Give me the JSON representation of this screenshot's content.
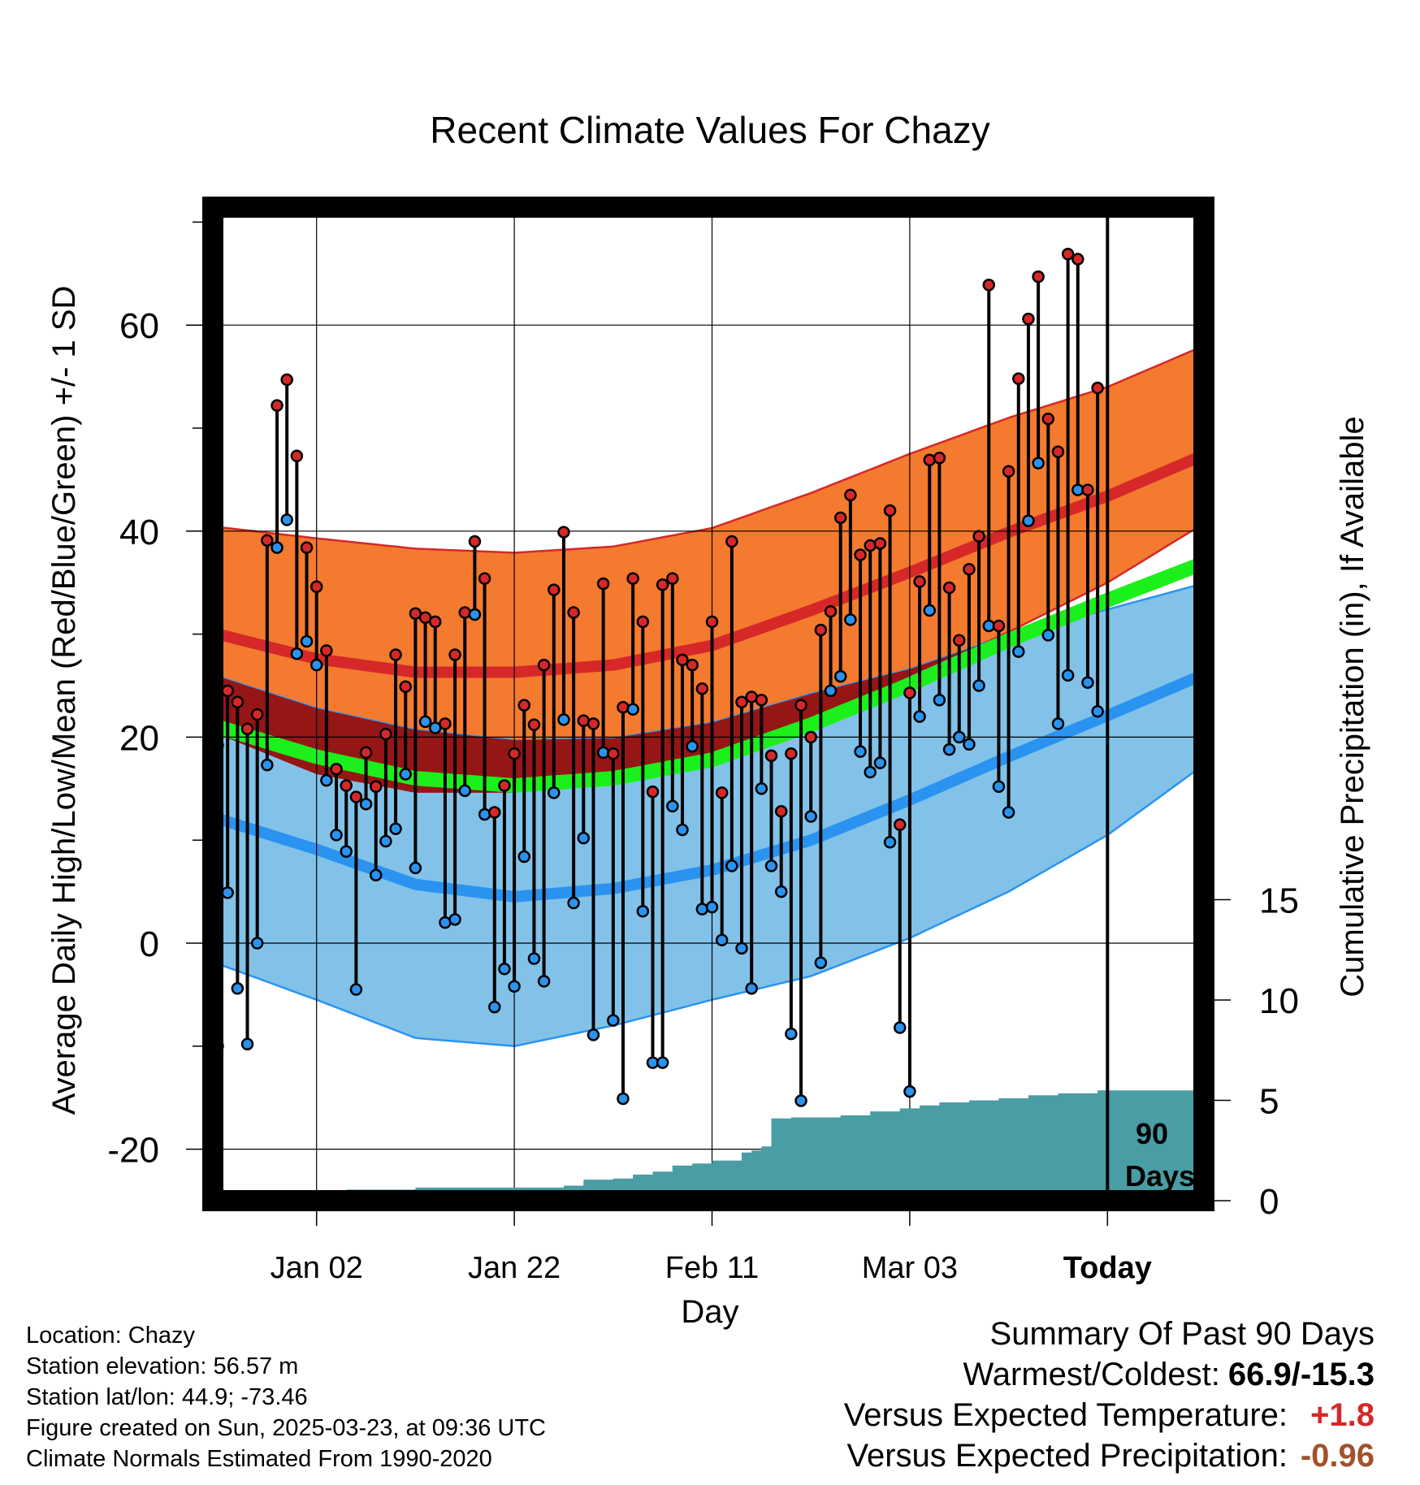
{
  "chart_data": {
    "type": "line",
    "title": "Recent Climate Values For Chazy",
    "xlabel": "Day",
    "ylabel": "Average Daily High/Low/Mean (Red/Blue/Green) +/- 1 SD",
    "y2label": "Cumulative Precipitation (in), If Available",
    "xticks": [
      "Jan 02",
      "Jan 22",
      "Feb 11",
      "Mar 03",
      "Today"
    ],
    "xtick_days": [
      10,
      30,
      50,
      70,
      90
    ],
    "x_range_days": [
      0,
      100
    ],
    "ylim": [
      -25,
      72
    ],
    "yticks": [
      -20,
      0,
      20,
      40,
      60
    ],
    "y2lim": [
      0,
      15
    ],
    "y2ticks": [
      0,
      5,
      10,
      15
    ],
    "window_label": "90 Days",
    "normals": {
      "days": [
        0,
        10,
        20,
        30,
        40,
        50,
        60,
        70,
        80,
        90,
        100
      ],
      "high_mean": [
        30.0,
        27.6,
        26.3,
        26.3,
        27.0,
        28.9,
        32.3,
        36.0,
        39.9,
        43.4,
        47.5
      ],
      "high_sd_upper": [
        40.4,
        39.3,
        38.3,
        37.9,
        38.5,
        40.3,
        43.7,
        47.5,
        51.0,
        54.0,
        58.1
      ],
      "high_sd_lower": [
        20.3,
        16.4,
        14.6,
        14.6,
        15.6,
        17.8,
        21.6,
        25.9,
        30.2,
        35.0,
        40.9
      ],
      "mean": [
        21.0,
        18.1,
        16.0,
        15.3,
        16.0,
        17.8,
        21.2,
        25.1,
        29.4,
        33.3,
        37.0
      ],
      "low_mean": [
        12.1,
        9.1,
        5.7,
        4.5,
        5.3,
        7.1,
        10.0,
        13.9,
        18.1,
        22.1,
        26.2
      ],
      "low_sd_upper": [
        25.9,
        22.8,
        20.7,
        19.7,
        19.9,
        21.4,
        24.2,
        26.6,
        29.9,
        32.4,
        35.0
      ],
      "low_sd_lower": [
        -2.0,
        -5.5,
        -9.2,
        -10.0,
        -8.0,
        -5.5,
        -3.2,
        0.5,
        5.0,
        10.5,
        17.5
      ]
    },
    "daily_days": [
      0,
      1,
      2,
      3,
      4,
      5,
      6,
      7,
      8,
      9,
      10,
      11,
      12,
      13,
      14,
      15,
      16,
      17,
      18,
      19,
      20,
      21,
      22,
      23,
      24,
      25,
      26,
      27,
      28,
      29,
      30,
      31,
      32,
      33,
      34,
      35,
      36,
      37,
      38,
      39,
      40,
      41,
      42,
      43,
      44,
      45,
      46,
      47,
      48,
      49,
      50,
      51,
      52,
      53,
      54,
      55,
      56,
      57,
      58,
      59,
      60,
      61,
      62,
      63,
      64,
      65,
      66,
      67,
      68,
      69,
      70,
      71,
      72,
      73,
      74,
      75,
      76,
      77,
      78,
      79,
      80,
      81,
      82,
      83,
      84,
      85,
      86,
      87,
      88,
      89,
      90
    ],
    "daily_high": [
      19.2,
      24.5,
      23.4,
      20.8,
      22.2,
      39.1,
      52.2,
      54.7,
      47.3,
      38.4,
      34.6,
      28.4,
      16.9,
      15.3,
      14.2,
      18.5,
      15.2,
      20.3,
      28.0,
      24.9,
      32.0,
      31.6,
      31.2,
      21.3,
      28.0,
      32.1,
      39.0,
      35.4,
      12.7,
      15.3,
      18.4,
      23.1,
      21.2,
      27.0,
      34.3,
      39.9,
      32.1,
      21.6,
      21.3,
      34.9,
      18.4,
      22.9,
      35.4,
      31.2,
      14.7,
      34.8,
      35.4,
      27.5,
      27.0,
      24.7,
      31.2,
      14.6,
      39.0,
      23.4,
      23.9,
      23.6,
      18.2,
      12.8,
      18.4,
      23.1,
      20.0,
      30.4,
      32.2,
      41.3,
      43.5,
      37.7,
      38.6,
      38.8,
      42.0,
      11.5,
      24.3,
      35.1,
      46.9,
      47.1,
      34.5,
      29.4,
      36.3,
      39.5,
      63.9,
      30.8,
      45.8,
      54.8,
      60.6,
      64.7,
      50.9,
      47.7,
      66.9,
      66.4,
      44.0,
      53.9
    ],
    "daily_low": [
      -10.0,
      4.9,
      -4.4,
      -9.8,
      0.0,
      17.3,
      38.4,
      41.1,
      28.1,
      29.3,
      27.0,
      15.8,
      10.5,
      8.9,
      -4.5,
      13.5,
      6.6,
      9.9,
      11.1,
      16.4,
      7.3,
      21.5,
      20.9,
      2.0,
      2.3,
      14.8,
      31.9,
      12.5,
      -6.2,
      -2.5,
      -4.2,
      8.4,
      -1.5,
      -3.7,
      14.6,
      21.7,
      3.9,
      10.2,
      -8.9,
      18.5,
      -7.5,
      -15.1,
      22.7,
      3.1,
      -11.6,
      -11.6,
      13.3,
      11.0,
      19.1,
      3.3,
      3.5,
      0.3,
      7.5,
      -0.5,
      -4.4,
      15.0,
      7.5,
      5.0,
      -8.8,
      -15.3,
      12.3,
      -1.9,
      24.5,
      25.9,
      31.4,
      18.6,
      16.6,
      17.5,
      9.8,
      -8.2,
      -14.4,
      22.0,
      32.3,
      23.6,
      18.8,
      20.0,
      19.3,
      25.0,
      30.8,
      15.2,
      12.7,
      28.3,
      41.0,
      46.6,
      29.9,
      21.3,
      26.0,
      44.0,
      25.3,
      22.5
    ],
    "precip_cumulative": {
      "days": [
        0,
        7,
        8,
        9,
        10,
        13,
        20,
        35,
        37,
        40,
        42,
        44,
        46,
        48,
        50,
        53,
        54,
        55,
        56,
        58,
        63,
        66,
        69,
        71,
        73,
        76,
        79,
        82,
        85,
        89,
        100
      ],
      "values": [
        0,
        0,
        0.15,
        0.35,
        0.45,
        0.55,
        0.65,
        0.75,
        1.05,
        1.1,
        1.3,
        1.45,
        1.75,
        1.85,
        2.0,
        2.4,
        2.5,
        2.7,
        4.1,
        4.15,
        4.25,
        4.45,
        4.6,
        4.75,
        4.9,
        5.0,
        5.1,
        5.25,
        5.35,
        5.5,
        5.5
      ]
    }
  },
  "colors": {
    "high_band": "#f47a2f",
    "high_line": "#d62828",
    "low_band": "#82c2e8",
    "low_line": "#2a93f0",
    "overlap_band": "#961515",
    "mean_line": "#1cf01c",
    "precip": "#4a9da4",
    "high_dot": "#d62828",
    "low_dot": "#2a93f0",
    "warm_value": "#d62828",
    "precip_value": "#a0522d"
  },
  "info": {
    "location": "Location: Chazy",
    "elevation": "Station elevation: 56.57 m",
    "latlon": "Station lat/lon: 44.9; -73.46",
    "created": "Figure created on Sun, 2025-03-23, at 09:36 UTC",
    "normals": "Climate Normals Estimated From 1990-2020"
  },
  "summary": {
    "title": "Summary Of Past 90 Days",
    "warm_cold_label": "Warmest/Coldest:",
    "warm_cold_value": "66.9/-15.3",
    "temp_label": "Versus Expected Temperature:",
    "temp_value": "+1.8",
    "precip_label": "Versus Expected Precipitation:",
    "precip_value": "-0.96"
  }
}
